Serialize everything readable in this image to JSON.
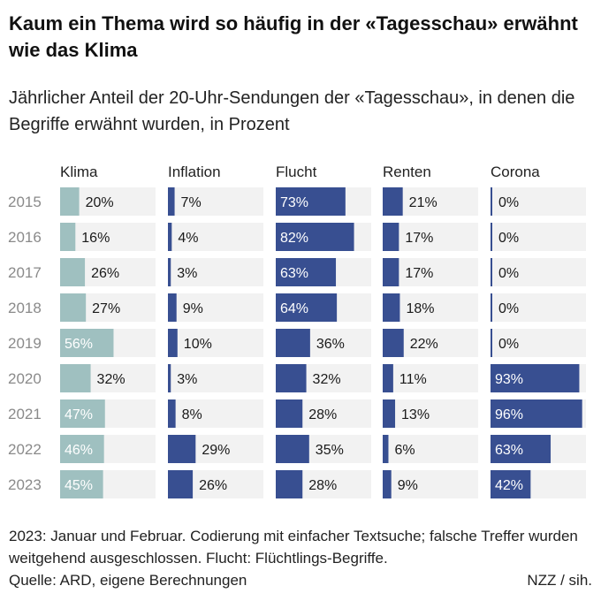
{
  "title": "Kaum ein Thema wird so häufig in der «Tagesschau» erwähnt wie das Klima",
  "subtitle": "Jährlicher Anteil der 20-Uhr-Sendungen der «Tagesschau», in denen die Begriffe erwähnt wurden, in Prozent",
  "footnote": "2023: Januar und Februar. Codierung mit einfacher Textsuche; falsche Treffer wurden weitgehend ausgeschlossen. Flucht: Flüchtlings-Begriffe.",
  "source": "Quelle: ARD, eigene Berechnungen",
  "credit": "NZZ / sih.",
  "colors": {
    "klima": "#9fc0c0",
    "other": "#384f91",
    "track": "#f2f2f2",
    "year_label": "#8a8a8a"
  },
  "chart_data": {
    "type": "bar",
    "orientation": "horizontal",
    "layout": "small-multiples",
    "xlim": [
      0,
      100
    ],
    "unit": "%",
    "categories": [
      "2015",
      "2016",
      "2017",
      "2018",
      "2019",
      "2020",
      "2021",
      "2022",
      "2023"
    ],
    "series": [
      {
        "name": "Klima",
        "color": "#9fc0c0",
        "values": [
          20,
          16,
          26,
          27,
          56,
          32,
          47,
          46,
          45
        ]
      },
      {
        "name": "Inflation",
        "color": "#384f91",
        "values": [
          7,
          4,
          3,
          9,
          10,
          3,
          8,
          29,
          26
        ]
      },
      {
        "name": "Flucht",
        "color": "#384f91",
        "values": [
          73,
          82,
          63,
          64,
          36,
          32,
          28,
          35,
          28
        ]
      },
      {
        "name": "Renten",
        "color": "#384f91",
        "values": [
          21,
          17,
          17,
          18,
          22,
          11,
          13,
          6,
          9
        ]
      },
      {
        "name": "Corona",
        "color": "#384f91",
        "values": [
          0,
          0,
          0,
          0,
          0,
          93,
          96,
          63,
          42
        ]
      }
    ]
  }
}
